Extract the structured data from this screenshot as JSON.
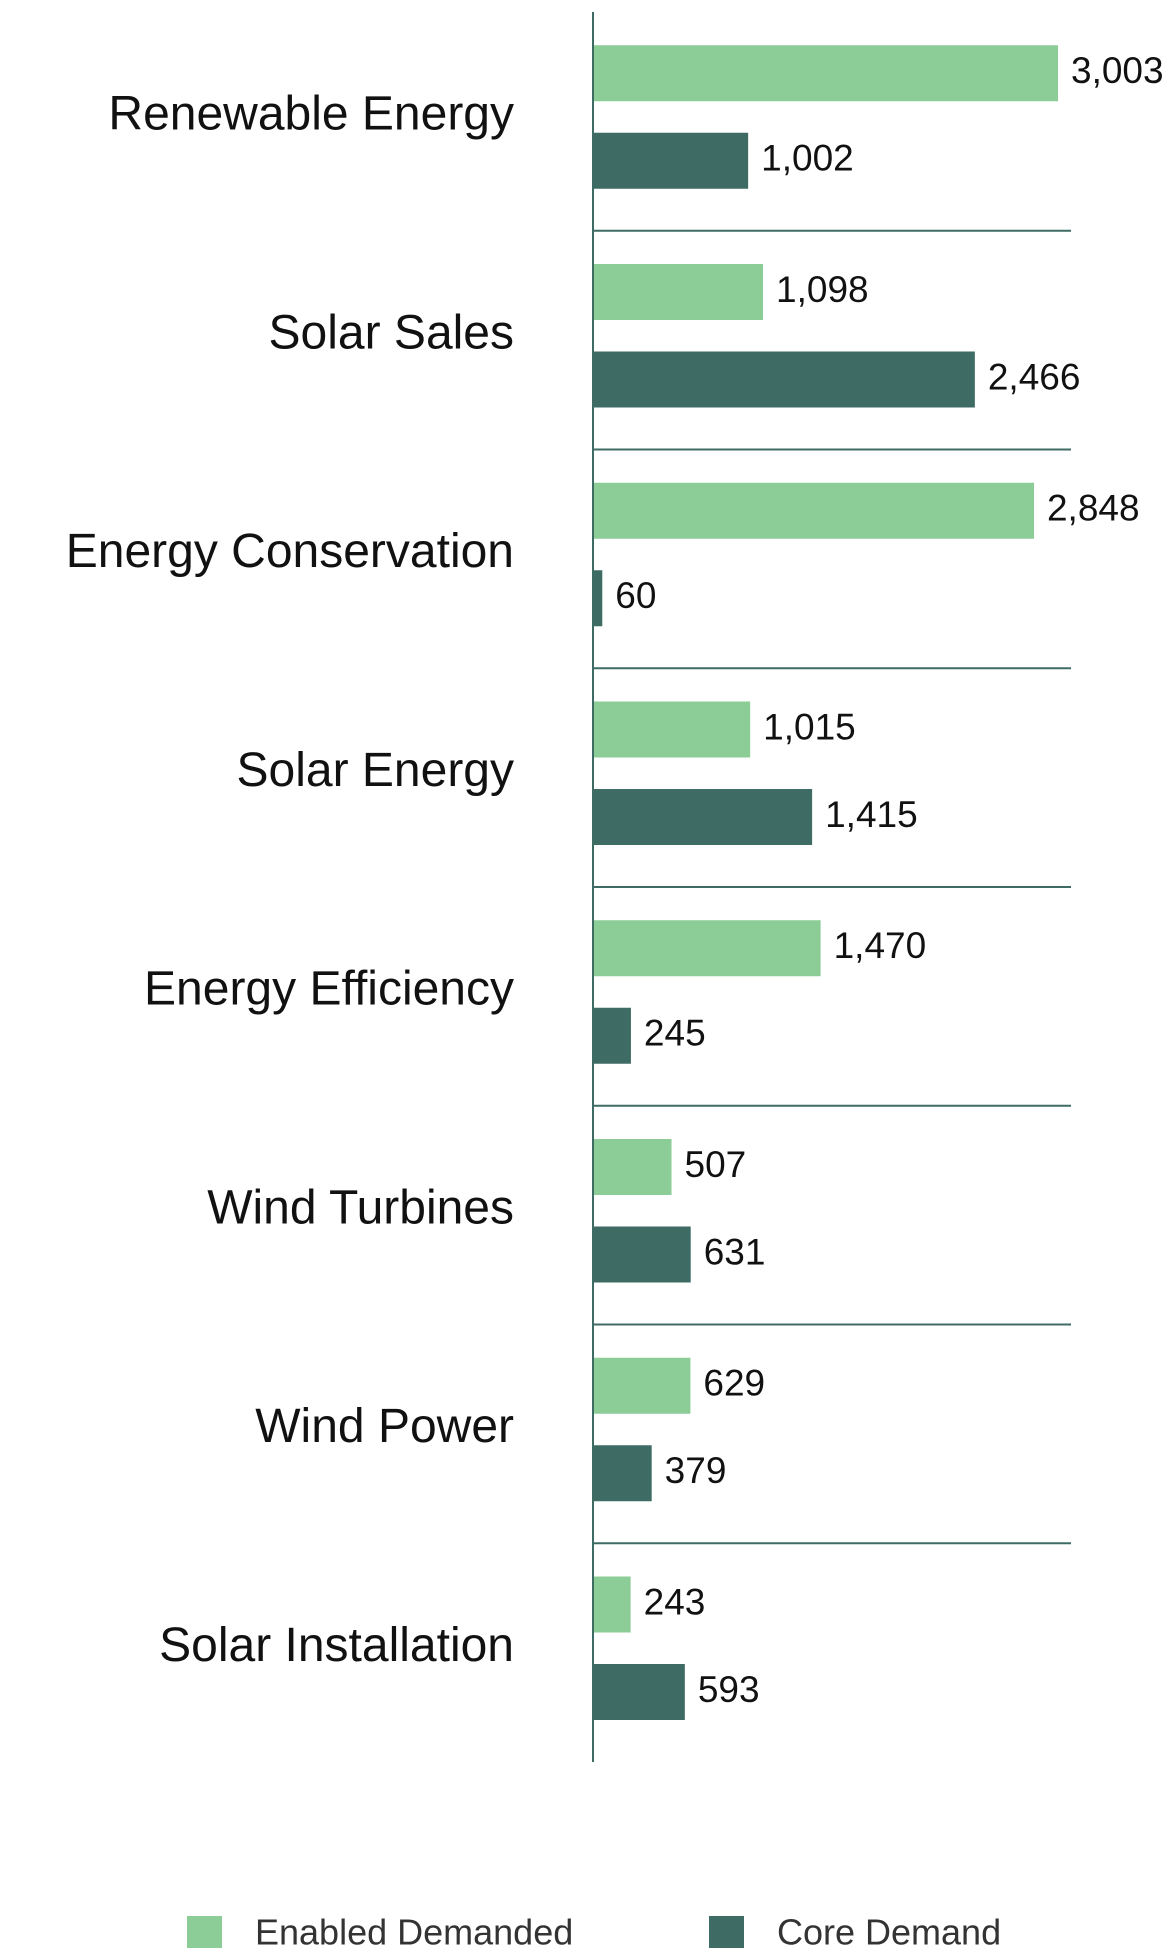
{
  "chart_data": {
    "type": "bar",
    "orientation": "horizontal",
    "categories": [
      "Renewable Energy",
      "Solar Sales",
      "Energy Conservation",
      "Solar Energy",
      "Energy Efficiency",
      "Wind Turbines",
      "Wind Power",
      "Solar Installation"
    ],
    "series": [
      {
        "name": "Enabled Demanded",
        "color": "#8ccc96",
        "values": [
          3003,
          1098,
          2848,
          1015,
          1470,
          507,
          629,
          243
        ],
        "value_labels": [
          "3,003",
          "1,098",
          "2,848",
          "1,015",
          "1,470",
          "507",
          "629",
          "243"
        ]
      },
      {
        "name": "Core Demand",
        "color": "#3e6b64",
        "values": [
          1002,
          2466,
          60,
          1415,
          245,
          631,
          379,
          593
        ],
        "value_labels": [
          "1,002",
          "2,466",
          "60",
          "1,415",
          "245",
          "631",
          "379",
          "593"
        ]
      }
    ],
    "legend": "bottom"
  }
}
